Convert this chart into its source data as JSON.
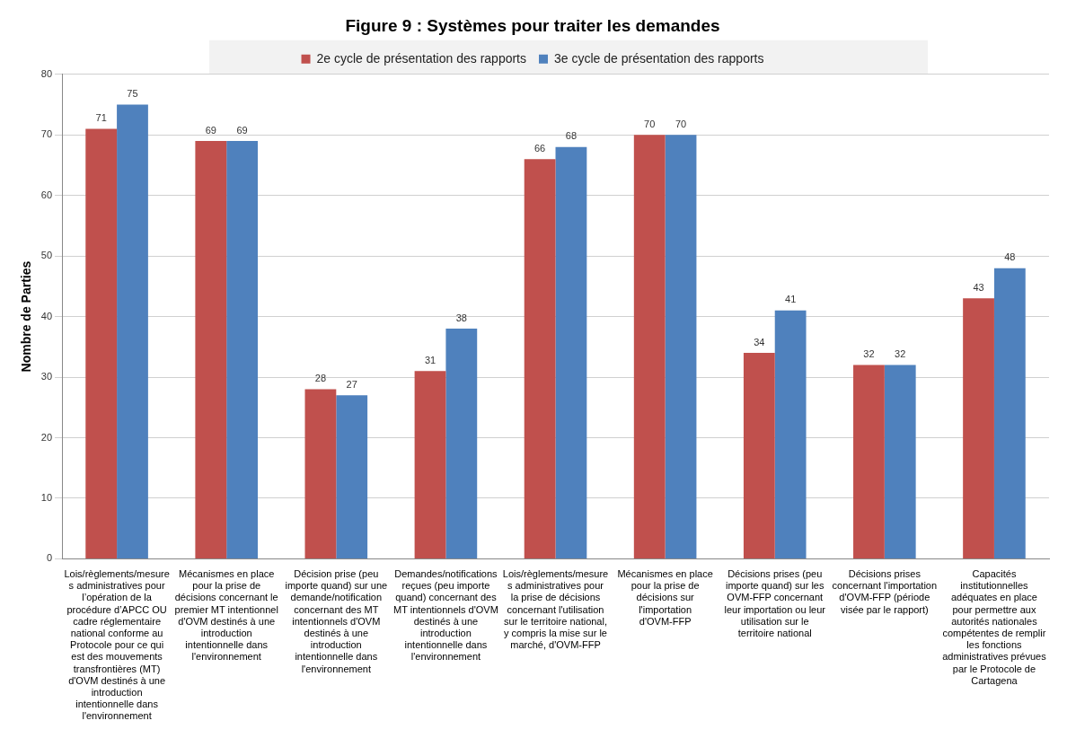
{
  "chart_data": {
    "type": "bar",
    "title": "Figure 9 : Systèmes pour traiter les demandes",
    "ylabel": "Nombre de Parties",
    "categories": [
      "Lois/règlements/mesures administratives pour l’opération de la procédure d’APCC OU cadre réglementaire national conforme au Protocole pour ce qui est des mouvements transfrontières (MT) d'OVM destinés à une introduction intentionnelle dans l'environnement",
      "Mécanismes en place pour la prise de décisions concernant le premier MT intentionnel d'OVM destinés à une introduction intentionnelle dans l'environnement",
      "Décision prise (peu importe quand) sur une demande/notification concernant des MT intentionnels d'OVM destinés à une introduction intentionnelle dans l'environnement",
      "Demandes/notifications reçues (peu importe quand) concernant des MT intentionnels d'OVM destinés à une introduction intentionnelle dans l'environnement",
      "Lois/règlements/mesures administratives pour la prise de décisions concernant l'utilisation sur le territoire national, y compris la mise sur le marché, d'OVM-FFP",
      "Mécanismes en place pour la prise de décisions sur l'importation d'OVM-FFP",
      "Décisions prises (peu importe quand) sur les OVM-FFP concernant leur importation ou leur utilisation sur le territoire national",
      "Décisions prises concernant l'importation d'OVM-FFP (période visée par le rapport)",
      "Capacités institutionnelles adéquates en place pour permettre aux autorités nationales compétentes de remplir les fonctions administratives prévues par le Protocole de Cartagena"
    ],
    "series": [
      {
        "name": "2e cycle de présentation des rapports",
        "color": "#c0504d",
        "values": [
          71,
          69,
          28,
          31,
          66,
          70,
          34,
          32,
          43
        ]
      },
      {
        "name": "3e cycle de présentation des rapports",
        "color": "#4f81bd",
        "values": [
          75,
          69,
          27,
          38,
          68,
          70,
          41,
          32,
          48
        ]
      }
    ],
    "ylim": [
      0,
      80
    ],
    "yticks": [
      0,
      10,
      20,
      30,
      40,
      50,
      60,
      70,
      80
    ],
    "grid": "y",
    "legend": "top",
    "data_labels": true
  }
}
